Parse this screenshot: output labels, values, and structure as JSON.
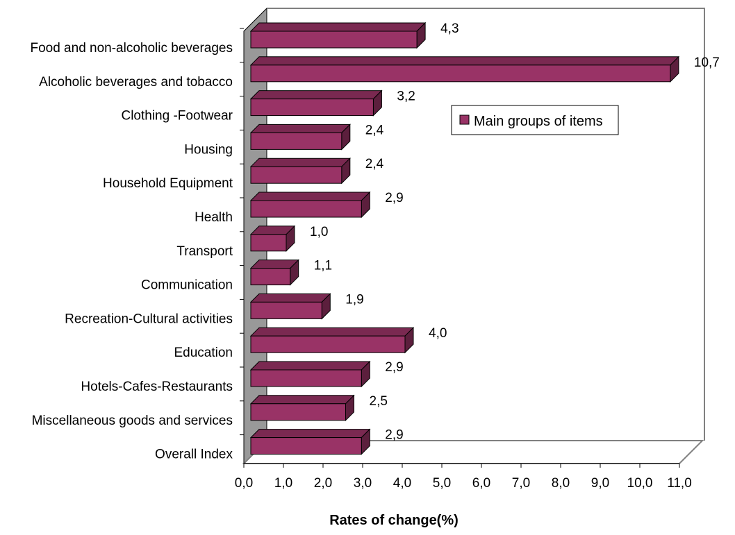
{
  "chart_data": {
    "type": "bar",
    "orientation": "horizontal",
    "categories": [
      "Food and non-alcoholic beverages",
      "Alcoholic beverages and tobacco",
      "Clothing -Footwear",
      "Housing",
      "Household Equipment",
      "Health",
      "Transport",
      "Communication",
      "Recreation-Cultural activities",
      "Education",
      "Hotels-Cafes-Restaurants",
      "Miscellaneous goods and services",
      "Overall Index"
    ],
    "series": [
      {
        "name": "Main groups of items",
        "values": [
          4.3,
          10.7,
          3.2,
          2.4,
          2.4,
          2.9,
          1.0,
          1.1,
          1.9,
          4.0,
          2.9,
          2.5,
          2.9
        ],
        "labels": [
          "4,3",
          "10,7",
          "3,2",
          "2,4",
          "2,4",
          "2,9",
          "1,0",
          "1,1",
          "1,9",
          "4,0",
          "2,9",
          "2,5",
          "2,9"
        ]
      }
    ],
    "xlim": [
      0,
      11
    ],
    "xticks": [
      0,
      1,
      2,
      3,
      4,
      5,
      6,
      7,
      8,
      9,
      10,
      11
    ],
    "xtick_labels": [
      "0,0",
      "1,0",
      "2,0",
      "3,0",
      "4,0",
      "5,0",
      "6,0",
      "7,0",
      "8,0",
      "9,0",
      "10,0",
      "11,0"
    ],
    "xlabel": "Rates of change(%)",
    "ylabel": "",
    "title": "",
    "grid": false,
    "legend": {
      "position": "right",
      "entries": [
        "Main groups of items"
      ]
    },
    "colors": {
      "bar_front": "#993366",
      "bar_top": "#7a2951",
      "bar_side": "#5c1f3d",
      "wall": "#999999",
      "frame": "#808080"
    },
    "style": "3d"
  }
}
